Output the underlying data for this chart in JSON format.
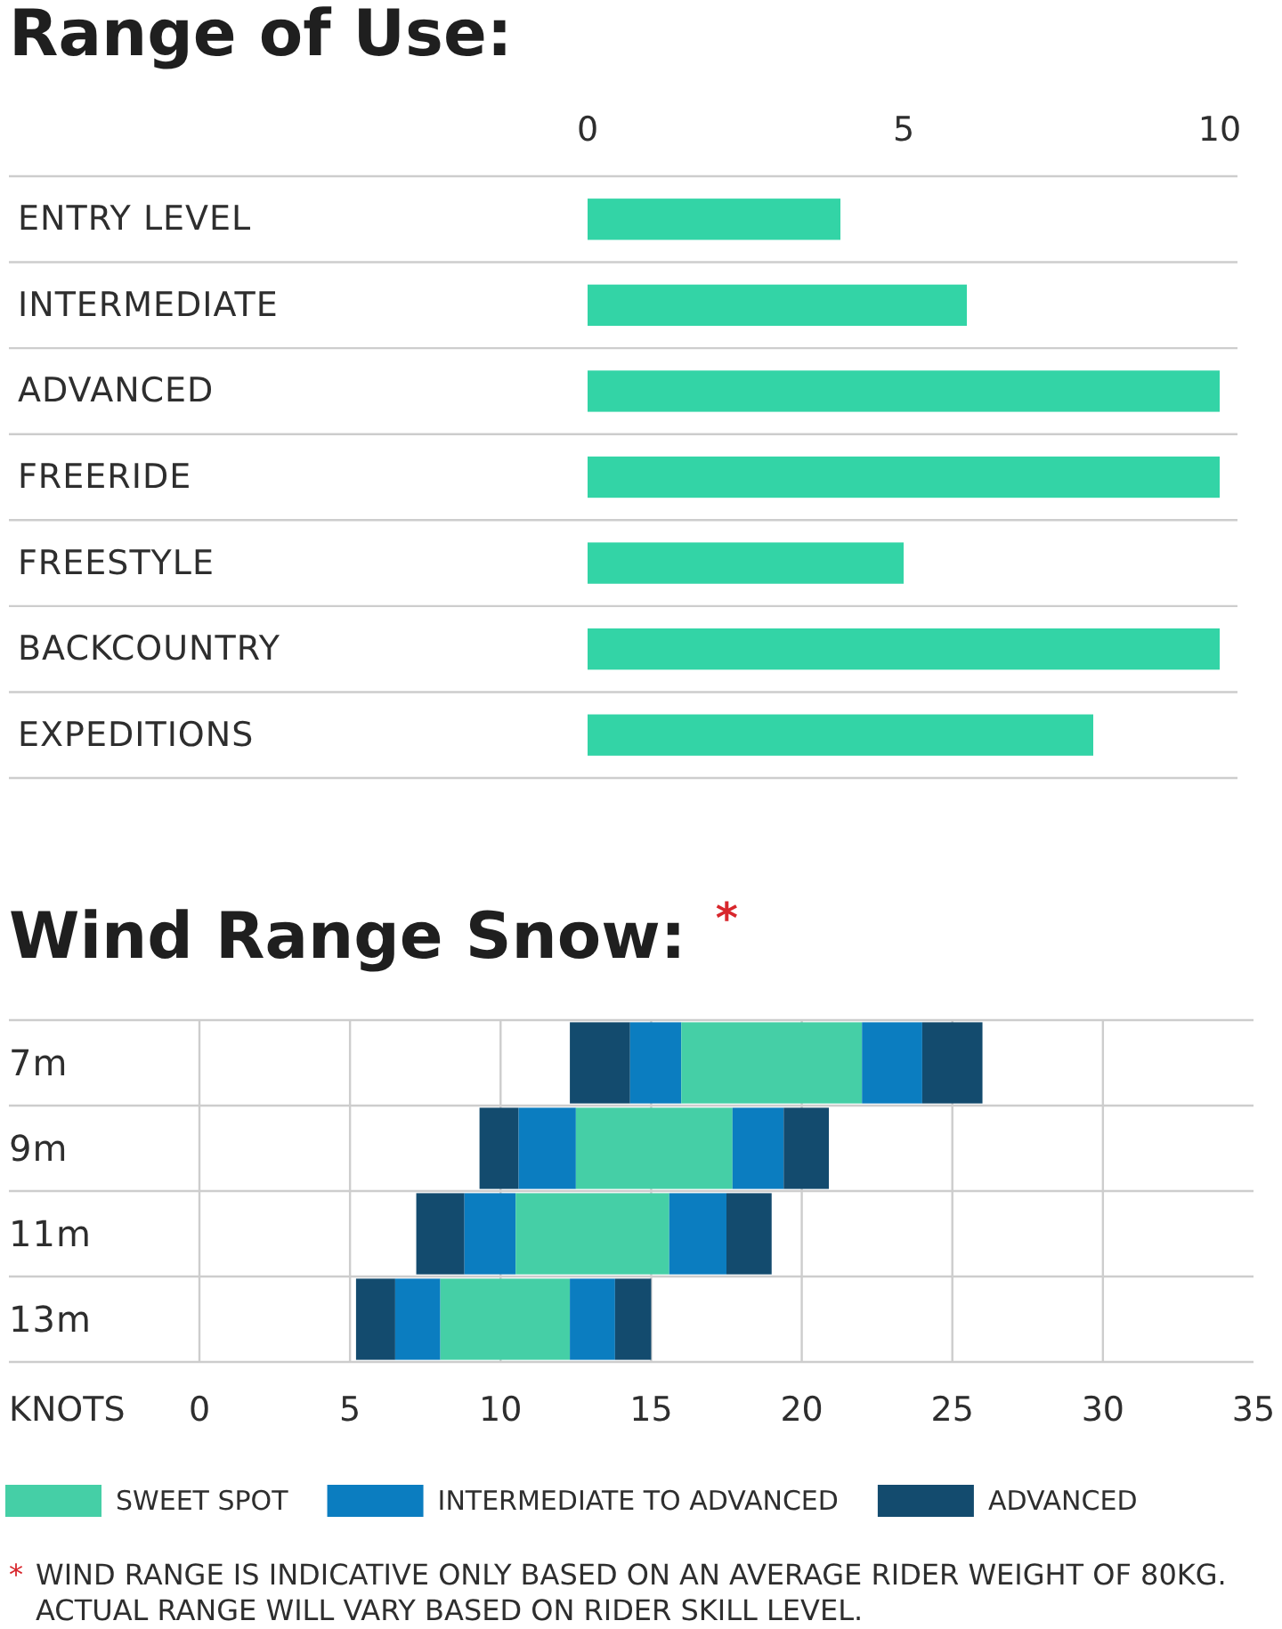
{
  "chart_data": [
    {
      "type": "bar",
      "title": "Range of Use:",
      "orientation": "horizontal",
      "categories": [
        "ENTRY LEVEL",
        "INTERMEDIATE",
        "ADVANCED",
        "FREERIDE",
        "FREESTYLE",
        "BACKCOUNTRY",
        "EXPEDITIONS"
      ],
      "series": [
        {
          "color": "#33d4a6",
          "axis": "x2",
          "values": [
            4,
            6,
            10,
            10,
            5,
            10,
            8
          ]
        }
      ],
      "x2lim": [
        0,
        10
      ],
      "x2ticks": [
        0,
        5,
        10
      ],
      "grid": "y"
    },
    {
      "type": "bar",
      "title": "Wind Range Snow: $^{*}$",
      "orientation": "horizontal",
      "categories": [
        "7m",
        "9m",
        "11m",
        "13m"
      ],
      "series": [
        {
          "color": "#134b6e",
          "base": [
            12.3,
            9.3,
            7.2,
            5.2
          ],
          "values": [
            2,
            1.3,
            1.6,
            1.3
          ]
        },
        {
          "color": "#0b7dc0",
          "base": [
            14.3,
            10.6,
            8.8,
            6.5
          ],
          "values": [
            1.7,
            1.9,
            1.7,
            1.5
          ]
        },
        {
          "name": "SWEET SPOT",
          "color": "#45cfa6",
          "base": [
            16,
            12.5,
            10.5,
            8
          ],
          "values": [
            6,
            5.2,
            5.1,
            4.3
          ]
        },
        {
          "name": "INTERMEDIATE TO ADVANCED",
          "color": "#0b7dc0",
          "base": [
            22,
            17.7,
            15.6,
            12.3
          ],
          "values": [
            2,
            1.7,
            1.9,
            1.5
          ]
        },
        {
          "name": "ADVANCED",
          "color": "#134b6e",
          "base": [
            24,
            19.4,
            17.5,
            13.8
          ],
          "values": [
            2,
            1.5,
            1.5,
            1.2
          ]
        }
      ],
      "xlabel": "KNOTS",
      "xlim": [
        0,
        35
      ],
      "xticks": [
        0,
        5,
        10,
        15,
        20,
        25,
        30,
        35
      ],
      "grid": true,
      "legend": "bottom",
      "annotations": [
        "* WIND RANGE IS INDICATIVE ONLY BASED ON AN AVERAGE RIDER WEIGHT OF 80KG. ACTUAL RANGE WILL VARY BASED ON RIDER SKILL LEVEL."
      ]
    }
  ]
}
